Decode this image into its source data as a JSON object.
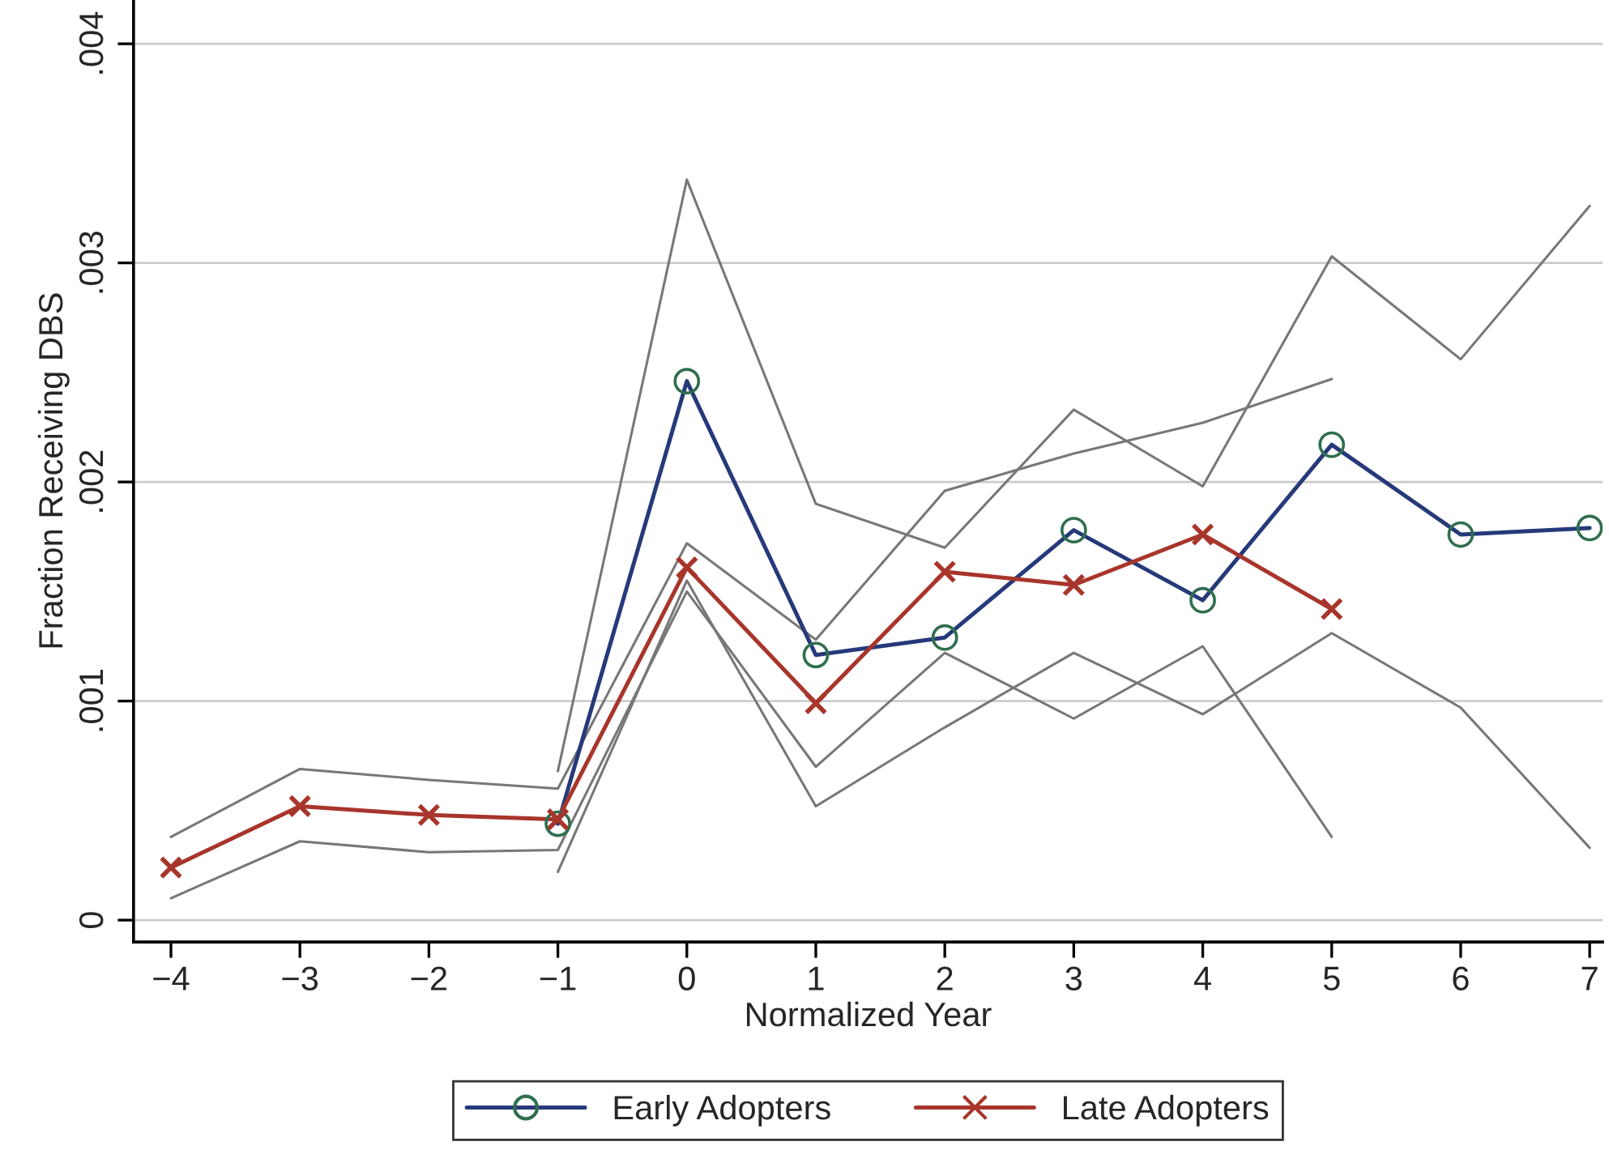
{
  "chart_data": {
    "type": "line",
    "xlabel": "Normalized Year",
    "ylabel": "Fraction Receiving DBS",
    "xlim": [
      -4.29,
      7.1
    ],
    "xticks": [
      -4,
      -3,
      -2,
      -1,
      0,
      1,
      2,
      3,
      4,
      5,
      6,
      7
    ],
    "ylim": [
      -0.0001,
      0.0042
    ],
    "yticks": [
      0,
      {
        "value": 0.001,
        "label": ".001"
      },
      {
        "value": 0.002,
        "label": ".002"
      },
      {
        "value": 0.003,
        "label": ".003"
      },
      {
        "value": 0.004,
        "label": ".004"
      }
    ],
    "grid": "y",
    "legend": "bottom",
    "series": [
      {
        "color": "#777777",
        "marker": "none",
        "x": [
          -1,
          0,
          1,
          2,
          3,
          4,
          5,
          6,
          7
        ],
        "values": [
          0.00022,
          0.00155,
          0.00052,
          0.00088,
          0.00122,
          0.00094,
          0.00131,
          0.00097,
          0.00033
        ]
      },
      {
        "color": "#777777",
        "marker": "none",
        "x": [
          -1,
          0,
          1,
          2,
          3,
          4,
          5,
          6,
          7
        ],
        "values": [
          0.00068,
          0.00338,
          0.0019,
          0.0017,
          0.00233,
          0.00198,
          0.00303,
          0.00256,
          0.00326
        ]
      },
      {
        "color": "#777777",
        "marker": "none",
        "x": [
          -4,
          -3,
          -2,
          -1,
          0,
          1,
          2,
          3,
          4,
          5
        ],
        "values": [
          0.0001,
          0.00036,
          0.00031,
          0.00032,
          0.0015,
          0.0007,
          0.00122,
          0.00092,
          0.00125,
          0.00038
        ]
      },
      {
        "color": "#777777",
        "marker": "none",
        "x": [
          -4,
          -3,
          -2,
          -1,
          0,
          1,
          2,
          3,
          4,
          5
        ],
        "values": [
          0.00038,
          0.00069,
          0.00064,
          0.0006,
          0.00172,
          0.00128,
          0.00196,
          0.00213,
          0.00227,
          0.00247
        ]
      },
      {
        "name": "Early Adopters",
        "color": "#26397a",
        "marker": "circle",
        "x": [
          -1,
          0,
          1,
          2,
          3,
          4,
          5,
          6,
          7
        ],
        "values": [
          0.00044,
          0.00246,
          0.00121,
          0.00129,
          0.00178,
          0.00146,
          0.00217,
          0.00176,
          0.00179
        ]
      },
      {
        "name": "Late Adopters",
        "color": "#a8352b",
        "marker": "cross",
        "x": [
          -4,
          -3,
          -2,
          -1,
          0,
          1,
          2,
          3,
          4,
          5
        ],
        "values": [
          0.00024,
          0.00052,
          0.00048,
          0.00046,
          0.00161,
          0.00099,
          0.00159,
          0.00153,
          0.00176,
          0.00142
        ]
      }
    ]
  }
}
